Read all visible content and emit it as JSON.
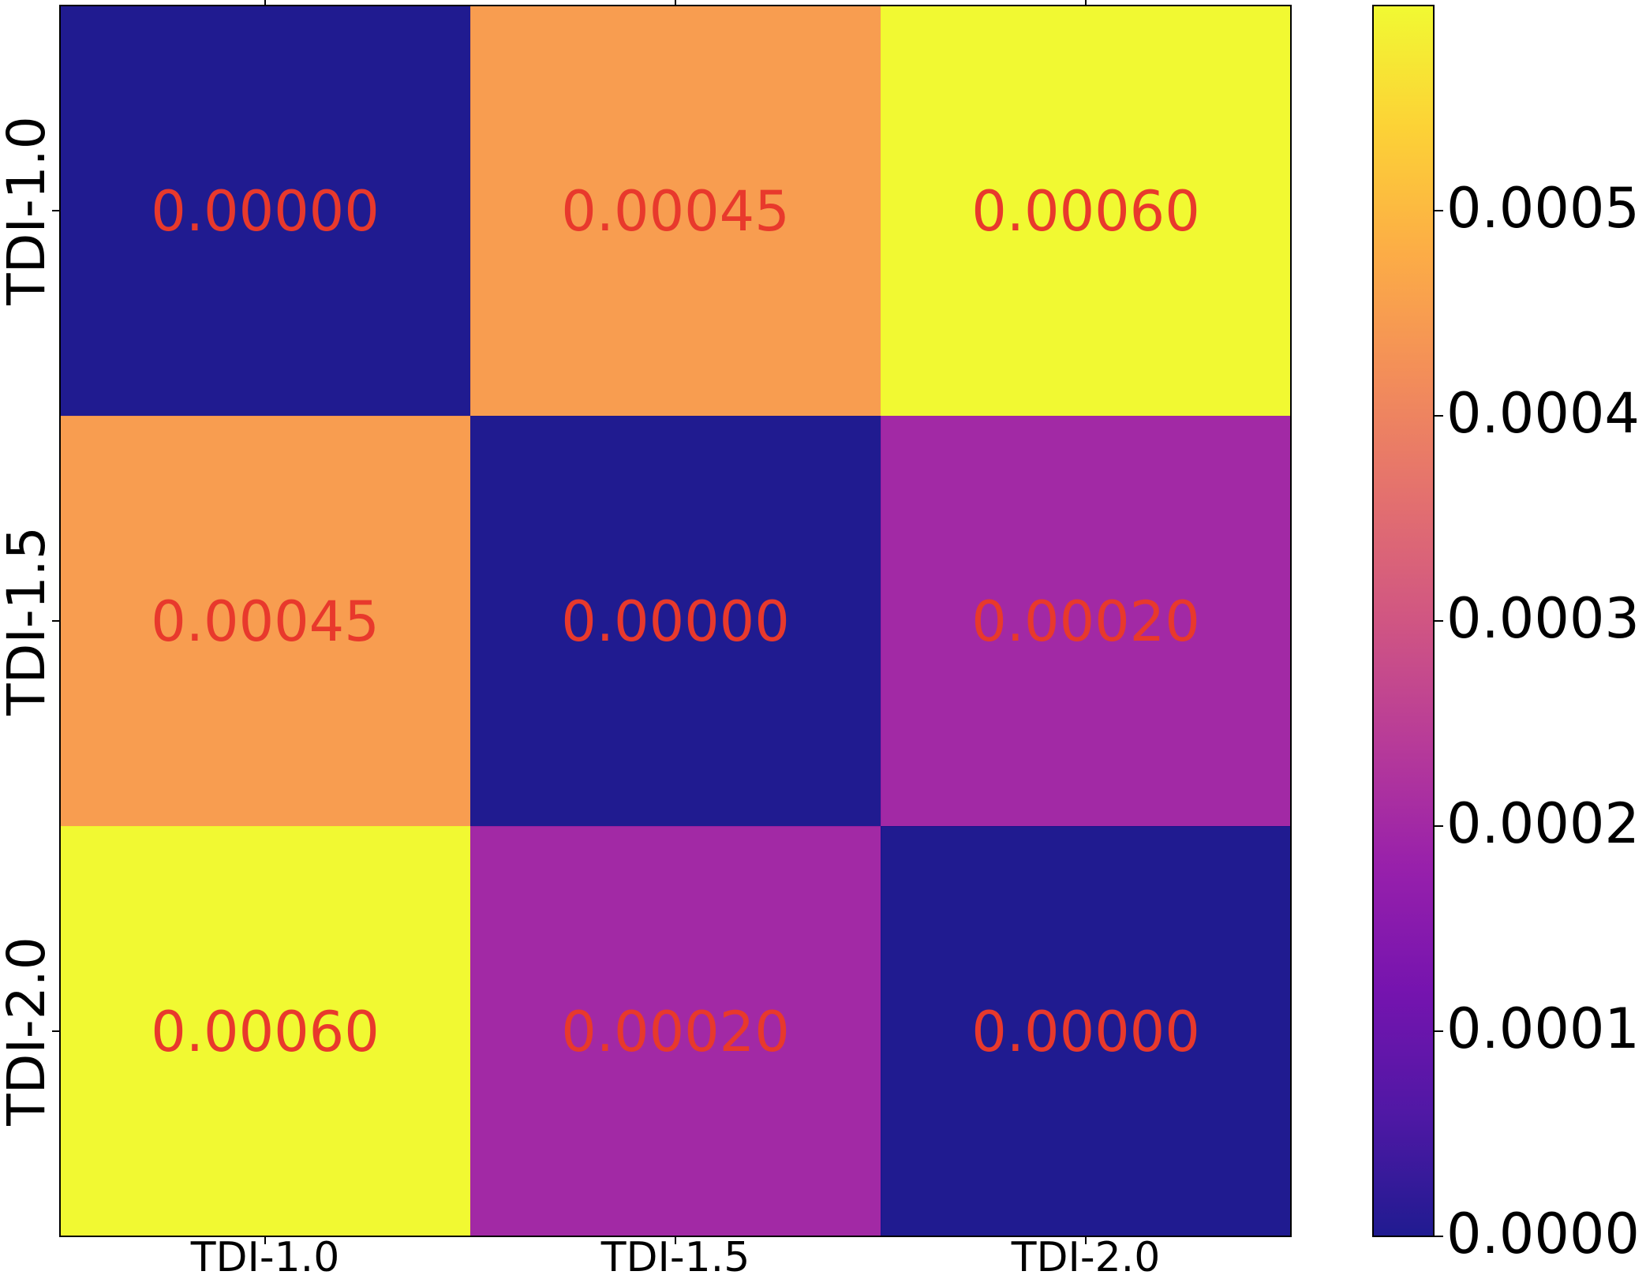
{
  "chart_data": {
    "type": "heatmap",
    "x_categories": [
      "TDI-1.0",
      "TDI-1.5",
      "TDI-2.0"
    ],
    "y_categories": [
      "TDI-1.0",
      "TDI-1.5",
      "TDI-2.0"
    ],
    "values": [
      [
        0,
        0.00045,
        0.0006
      ],
      [
        0.00045,
        0,
        0.0002
      ],
      [
        0.0006,
        0.0002,
        0
      ]
    ],
    "value_labels": [
      [
        "0.00000",
        "0.00045",
        "0.00060"
      ],
      [
        "0.00045",
        "0.00000",
        "0.00020"
      ],
      [
        "0.00060",
        "0.00020",
        "0.00000"
      ]
    ],
    "colormap": "plasma",
    "value_label_color": "#e8392c",
    "colorbar": {
      "lim": [
        0,
        0.0006
      ],
      "ticks": [
        {
          "value": 0,
          "label": "0.0000"
        },
        {
          "value": 0.0001,
          "label": "0.0001"
        },
        {
          "value": 0.0002,
          "label": "0.0002"
        },
        {
          "value": 0.0003,
          "label": "0.0003"
        },
        {
          "value": 0.0004,
          "label": "0.0004"
        },
        {
          "value": 0.0005,
          "label": "0.0005"
        }
      ]
    }
  }
}
